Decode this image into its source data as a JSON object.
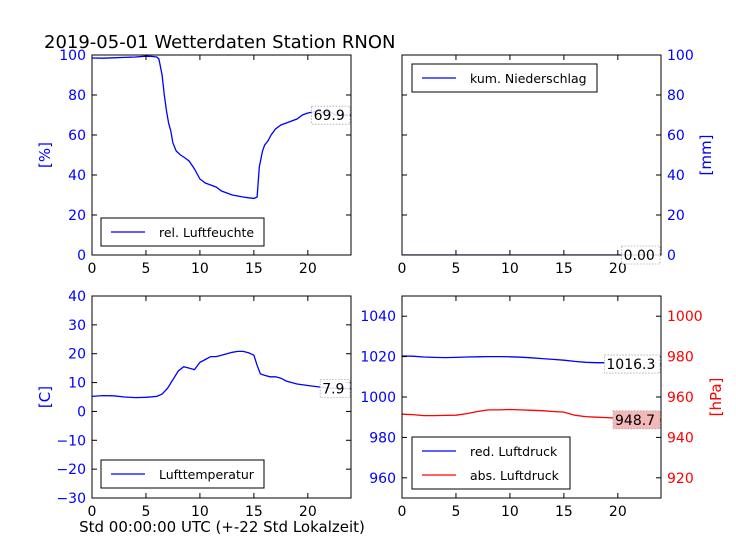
{
  "title": "2019-05-01 Wetterdaten Station RNON",
  "xlabel": "Std 00:00:00 UTC (+-22 Std Lokalzeit)",
  "chart_data": [
    {
      "id": "humidity",
      "type": "line",
      "ylabel": "[%]",
      "xlim": [
        0,
        24
      ],
      "ylim": [
        0,
        100
      ],
      "xticks": [
        "0",
        "5",
        "10",
        "15",
        "20"
      ],
      "yticks": [
        "0",
        "20",
        "40",
        "60",
        "80",
        "100"
      ],
      "color": "#0000ff",
      "legend": "top-left",
      "annotation": "69.9",
      "series": [
        {
          "name": "rel. Luftfeuchte",
          "color": "#0000ff",
          "x": [
            0,
            1,
            2,
            3,
            4,
            5,
            5.5,
            6,
            6.2,
            6.5,
            6.7,
            6.9,
            7.1,
            7.3,
            7.5,
            7.8,
            8.2,
            8.5,
            9,
            9.5,
            10,
            10.5,
            11,
            11.5,
            12,
            12.5,
            13,
            13.5,
            14,
            14.5,
            15,
            15.3,
            15.5,
            15.8,
            16,
            16.3,
            16.6,
            17,
            17.5,
            18,
            18.5,
            19,
            19.5,
            20,
            20.5,
            21,
            21.5,
            22,
            22.5,
            23,
            23.5,
            24
          ],
          "y": [
            98.5,
            98.4,
            98.6,
            98.8,
            99,
            99.4,
            99.3,
            99,
            98,
            90,
            80,
            72,
            66,
            62,
            56,
            52,
            50,
            49,
            47,
            43,
            38,
            36,
            35,
            34,
            32,
            31,
            30,
            29.5,
            29,
            28.6,
            28.3,
            29,
            44,
            52,
            55,
            57,
            60,
            63,
            65,
            66,
            67,
            68,
            70,
            71,
            71.5,
            72,
            71,
            72,
            70,
            69.8,
            70,
            69.9
          ]
        }
      ]
    },
    {
      "id": "precipitation",
      "type": "line",
      "ylabel": "[mm]",
      "xlim": [
        0,
        24
      ],
      "ylim": [
        0,
        100
      ],
      "xticks": [
        "0",
        "5",
        "10",
        "15",
        "20"
      ],
      "yticks": [
        "0",
        "20",
        "40",
        "60",
        "80",
        "100"
      ],
      "color": "#0000ff",
      "legend": "top-left",
      "annotation": "0.00",
      "series": [
        {
          "name": "kum. Niederschlag",
          "color": "#0000ff",
          "x": [
            0,
            24
          ],
          "y": [
            0,
            0
          ]
        }
      ]
    },
    {
      "id": "temperature",
      "type": "line",
      "ylabel": "[C]",
      "xlim": [
        0,
        24
      ],
      "ylim": [
        -30,
        40
      ],
      "xticks": [
        "0",
        "5",
        "10",
        "15",
        "20"
      ],
      "yticks": [
        "−30",
        "−20",
        "−10",
        "0",
        "10",
        "20",
        "30",
        "40"
      ],
      "color": "#0000ff",
      "legend": "bottom-left",
      "annotation": "7.9",
      "series": [
        {
          "name": "Lufttemperatur",
          "color": "#0000ff",
          "x": [
            0,
            1,
            2,
            3,
            4,
            5,
            6,
            6.5,
            7,
            7.5,
            8,
            8.5,
            9,
            9.5,
            10,
            10.5,
            11,
            11.5,
            12,
            12.5,
            13,
            13.5,
            14,
            14.5,
            15,
            15.3,
            15.6,
            16,
            16.5,
            17,
            17.5,
            18,
            19,
            20,
            21,
            22,
            23,
            24
          ],
          "y": [
            5.2,
            5.5,
            5.4,
            5,
            4.8,
            4.9,
            5.2,
            6,
            8,
            11,
            14,
            15.5,
            15,
            14.5,
            17,
            18,
            19,
            19,
            19.5,
            20,
            20.5,
            20.8,
            20.8,
            20.3,
            19.5,
            16,
            13,
            12.5,
            12,
            12,
            11.5,
            10.5,
            9.5,
            9,
            8.5,
            8.1,
            8,
            7.9
          ]
        }
      ]
    },
    {
      "id": "pressure",
      "type": "line",
      "ylabel": "[hPa]",
      "xlim": [
        0,
        24
      ],
      "ylim": [
        950,
        1050
      ],
      "ylim_right": [
        910,
        1010
      ],
      "xticks": [
        "0",
        "5",
        "10",
        "15",
        "20"
      ],
      "yticks": [
        "960",
        "980",
        "1000",
        "1020",
        "1040"
      ],
      "yticks_right": [
        "920",
        "940",
        "960",
        "980",
        "1000"
      ],
      "legend": "bottom-left",
      "annotations": [
        "1016.3",
        "948.7"
      ],
      "annotation_bg": "#f4b8b8",
      "series": [
        {
          "name": "red. Luftdruck",
          "color": "#0000ff",
          "axis": "left",
          "x": [
            0,
            1,
            2,
            3,
            4,
            5,
            6,
            7,
            8,
            9,
            10,
            11,
            12,
            13,
            14,
            15,
            16,
            17,
            18,
            19,
            20,
            21,
            22,
            23,
            24
          ],
          "y": [
            1020.3,
            1020.2,
            1019.8,
            1019.6,
            1019.5,
            1019.6,
            1019.8,
            1019.9,
            1020,
            1020,
            1019.9,
            1019.7,
            1019.4,
            1019,
            1018.6,
            1018.2,
            1017.6,
            1017.2,
            1017,
            1017,
            1017,
            1016.8,
            1016.6,
            1016.4,
            1016.3
          ]
        },
        {
          "name": "abs. Luftdruck",
          "color": "#ff0000",
          "axis": "right",
          "x": [
            0,
            1,
            2,
            3,
            4,
            5,
            6,
            7,
            8,
            9,
            10,
            11,
            12,
            13,
            14,
            15,
            16,
            17,
            18,
            19,
            20,
            21,
            22,
            23,
            24
          ],
          "y": [
            951.5,
            951.3,
            950.8,
            950.8,
            950.9,
            951,
            951.8,
            952.8,
            953.6,
            953.6,
            953.8,
            953.6,
            953.4,
            953.2,
            952.8,
            952.5,
            951,
            950.3,
            950,
            949.8,
            949.5,
            949.2,
            949,
            948.8,
            948.7
          ]
        }
      ]
    }
  ]
}
